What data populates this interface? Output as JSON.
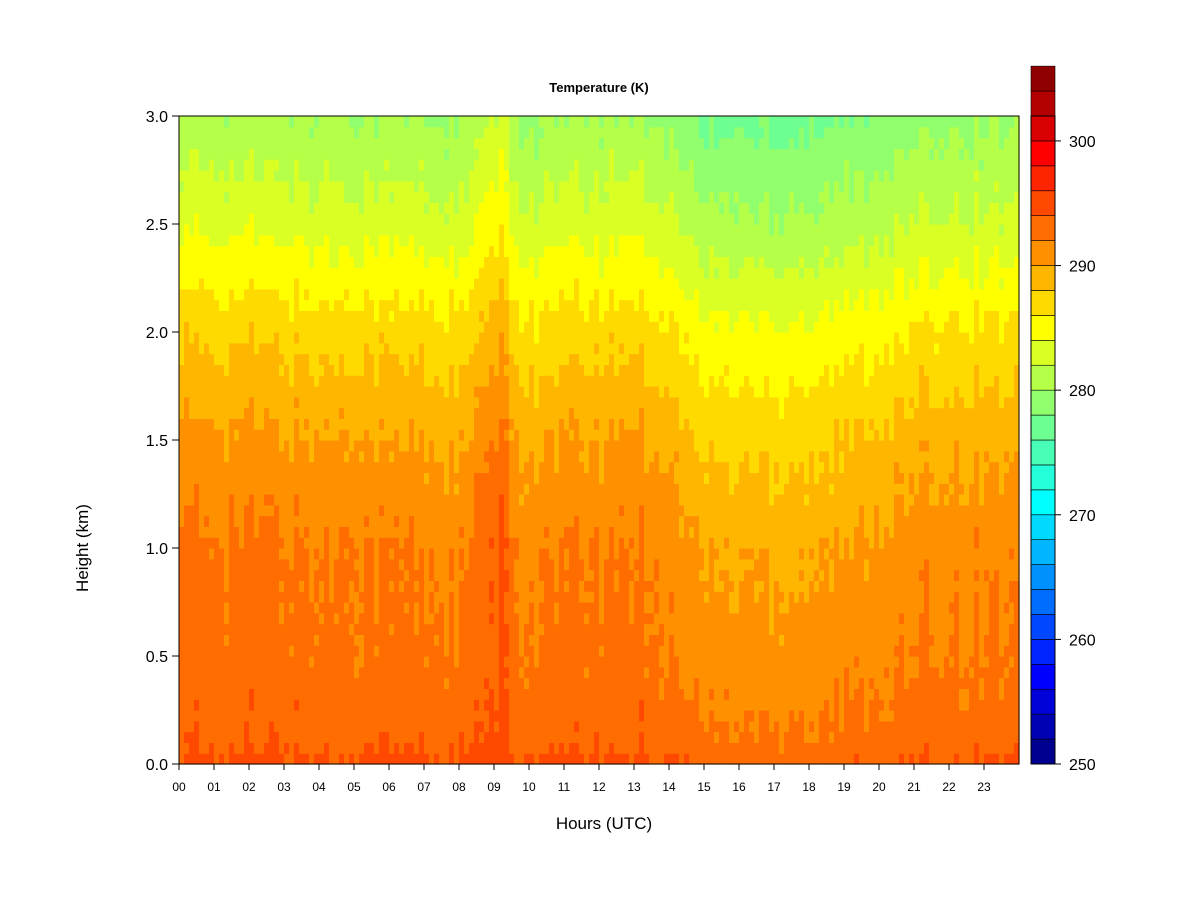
{
  "chart_data": {
    "type": "heatmap",
    "title": "Temperature (K)",
    "xlabel": "Hours (UTC)",
    "ylabel": "Height (km)",
    "xlim": [
      0,
      24
    ],
    "ylim": [
      0,
      3.0
    ],
    "x_ticks": [
      {
        "value": 0,
        "label": "00"
      },
      {
        "value": 1,
        "label": "01"
      },
      {
        "value": 2,
        "label": "02"
      },
      {
        "value": 3,
        "label": "03"
      },
      {
        "value": 4,
        "label": "04"
      },
      {
        "value": 5,
        "label": "05"
      },
      {
        "value": 6,
        "label": "06"
      },
      {
        "value": 7,
        "label": "07"
      },
      {
        "value": 8,
        "label": "08"
      },
      {
        "value": 9,
        "label": "09"
      },
      {
        "value": 10,
        "label": "10"
      },
      {
        "value": 11,
        "label": "11"
      },
      {
        "value": 12,
        "label": "12"
      },
      {
        "value": 13,
        "label": "13"
      },
      {
        "value": 14,
        "label": "14"
      },
      {
        "value": 15,
        "label": "15"
      },
      {
        "value": 16,
        "label": "16"
      },
      {
        "value": 17,
        "label": "17"
      },
      {
        "value": 18,
        "label": "18"
      },
      {
        "value": 19,
        "label": "19"
      },
      {
        "value": 20,
        "label": "20"
      },
      {
        "value": 21,
        "label": "21"
      },
      {
        "value": 22,
        "label": "22"
      },
      {
        "value": 23,
        "label": "23"
      }
    ],
    "y_ticks": [
      {
        "value": 0.0,
        "label": "0.0"
      },
      {
        "value": 0.5,
        "label": "0.5"
      },
      {
        "value": 1.0,
        "label": "1.0"
      },
      {
        "value": 1.5,
        "label": "1.5"
      },
      {
        "value": 2.0,
        "label": "2.0"
      },
      {
        "value": 2.5,
        "label": "2.5"
      },
      {
        "value": 3.0,
        "label": "3.0"
      }
    ],
    "colorbar": {
      "min": 250,
      "max": 302,
      "step": 2,
      "ticks": [
        {
          "value": 250,
          "label": "250"
        },
        {
          "value": 260,
          "label": "260"
        },
        {
          "value": 270,
          "label": "270"
        },
        {
          "value": 280,
          "label": "280"
        },
        {
          "value": 290,
          "label": "290"
        },
        {
          "value": 300,
          "label": "300"
        }
      ],
      "colors": [
        "#00008f",
        "#0000b4",
        "#0000d8",
        "#0000ff",
        "#0024ff",
        "#0048ff",
        "#006dff",
        "#0091ff",
        "#00b6ff",
        "#00daff",
        "#00ffff",
        "#24ffda",
        "#48ffb6",
        "#6dff91",
        "#91ff6d",
        "#b6ff48",
        "#daff24",
        "#ffff00",
        "#ffda00",
        "#ffb600",
        "#ff9100",
        "#ff6d00",
        "#ff4800",
        "#ff2400",
        "#ff0000",
        "#d80000",
        "#b40000",
        "#8f0000"
      ]
    },
    "background_profile": [
      {
        "height": 0.0,
        "temperature": 294.5
      },
      {
        "height": 0.1,
        "temperature": 293.5
      },
      {
        "height": 0.5,
        "temperature": 292.5
      },
      {
        "height": 1.0,
        "temperature": 292.0
      },
      {
        "height": 1.5,
        "temperature": 290.0
      },
      {
        "height": 2.0,
        "temperature": 287.0
      },
      {
        "height": 2.5,
        "temperature": 283.0
      },
      {
        "height": 3.0,
        "temperature": 280.0
      }
    ],
    "hourly_anomaly": [
      {
        "hour": 0,
        "offset": 0.5
      },
      {
        "hour": 1,
        "offset": 0.5
      },
      {
        "hour": 2,
        "offset": 0.5
      },
      {
        "hour": 3,
        "offset": 0.3
      },
      {
        "hour": 4,
        "offset": 0.0
      },
      {
        "hour": 5,
        "offset": 0.3
      },
      {
        "hour": 6,
        "offset": 0.0
      },
      {
        "hour": 7,
        "offset": 0.0
      },
      {
        "hour": 8,
        "offset": -0.5
      },
      {
        "hour": 8.8,
        "offset": 1.5
      },
      {
        "hour": 9.2,
        "offset": 2.5
      },
      {
        "hour": 9.6,
        "offset": 0.0
      },
      {
        "hour": 10,
        "offset": -0.5
      },
      {
        "hour": 11,
        "offset": 0.0
      },
      {
        "hour": 12,
        "offset": 0.0
      },
      {
        "hour": 13,
        "offset": 0.5
      },
      {
        "hour": 14,
        "offset": -0.5
      },
      {
        "hour": 15,
        "offset": -2.5
      },
      {
        "hour": 16,
        "offset": -2.5
      },
      {
        "hour": 17,
        "offset": -2.5
      },
      {
        "hour": 18,
        "offset": -2.5
      },
      {
        "hour": 19,
        "offset": -2.0
      },
      {
        "hour": 20,
        "offset": -1.5
      },
      {
        "hour": 21,
        "offset": -1.0
      },
      {
        "hour": 22,
        "offset": -0.5
      },
      {
        "hour": 23,
        "offset": -0.5
      },
      {
        "hour": 24,
        "offset": -0.5
      }
    ]
  }
}
